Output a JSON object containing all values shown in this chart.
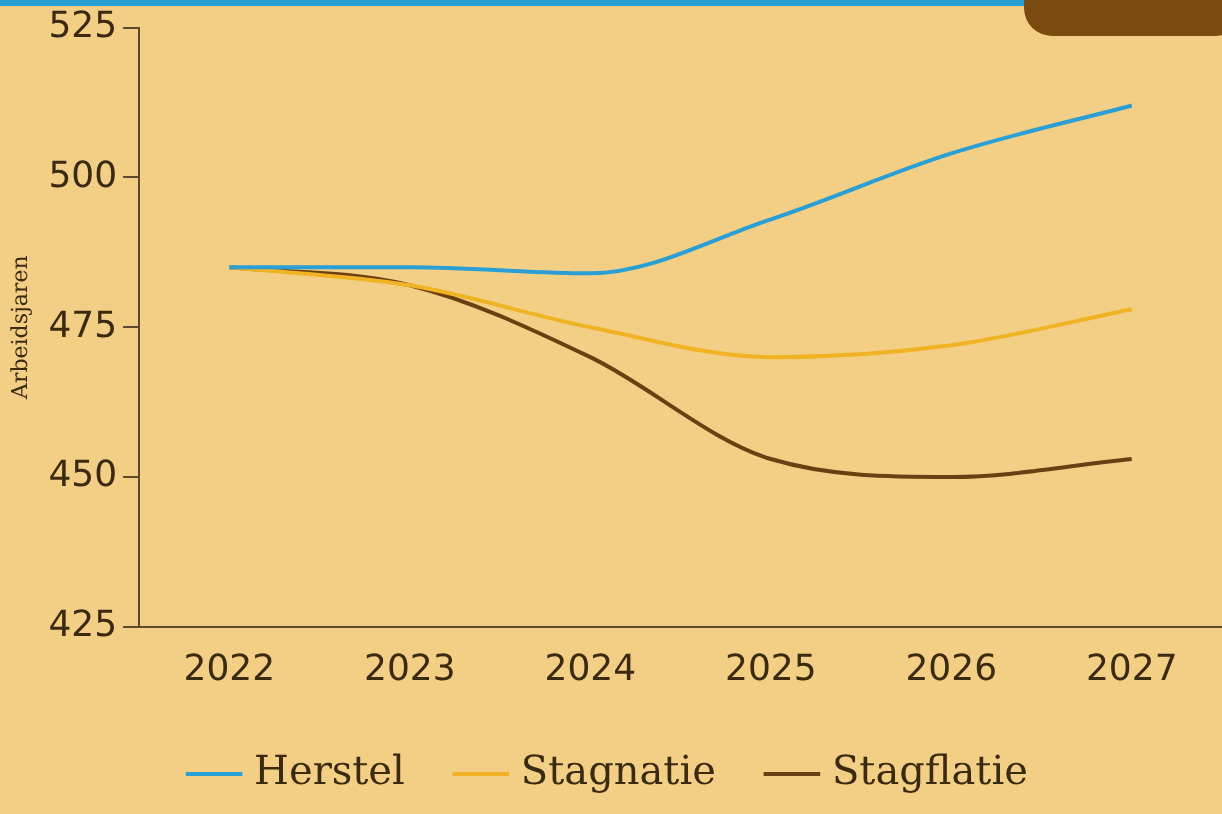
{
  "chart_data": {
    "type": "line",
    "ylabel": "Arbeidsjaren",
    "categories": [
      "2022",
      "2023",
      "2024",
      "2025",
      "2026",
      "2027"
    ],
    "series": [
      {
        "name": "Herstel",
        "color": "#2a9fd6",
        "values": [
          485,
          485,
          484,
          493,
          504,
          512
        ]
      },
      {
        "name": "Stagnatie",
        "color": "#f0b323",
        "values": [
          485,
          482,
          475,
          470,
          472,
          478
        ]
      },
      {
        "name": "Stagflatie",
        "color": "#6b3f12",
        "values": [
          485,
          482,
          470,
          453,
          450,
          453
        ]
      }
    ],
    "ylim": [
      425,
      525
    ],
    "yticks": [
      425,
      450,
      475,
      500,
      525
    ],
    "grid": false,
    "legend": "bottom",
    "marker": "none",
    "line_style": "solid"
  }
}
